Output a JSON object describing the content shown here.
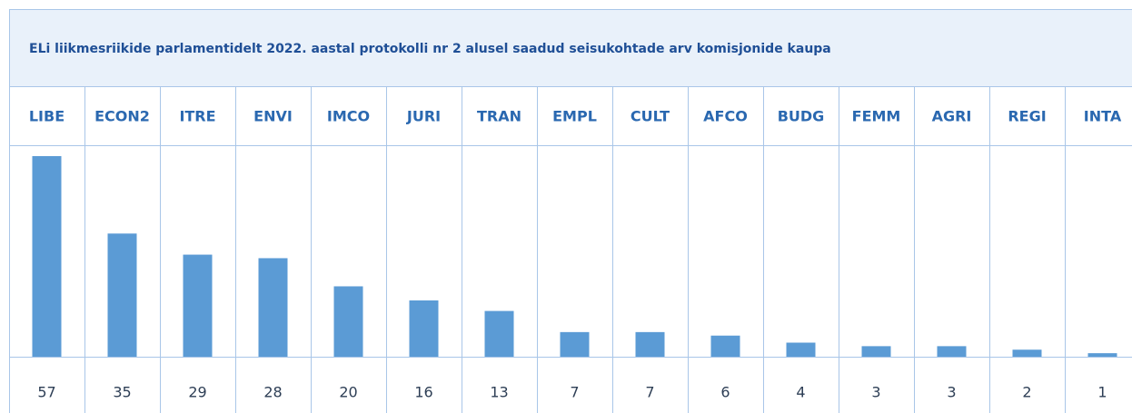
{
  "chart_data": {
    "type": "bar",
    "title": "ELi liikmesriikide parlamentidelt 2022. aastal protokolli nr 2 alusel saadud seisukohtade arv komisjonide kaupa",
    "categories": [
      "LIBE",
      "ECON2",
      "ITRE",
      "ENVI",
      "IMCO",
      "JURI",
      "TRAN",
      "EMPL",
      "CULT",
      "AFCO",
      "BUDG",
      "FEMM",
      "AGRI",
      "REGI",
      "INTA"
    ],
    "values": [
      57,
      35,
      29,
      28,
      20,
      16,
      13,
      7,
      7,
      6,
      4,
      3,
      3,
      2,
      1
    ],
    "color": "#5b9bd5"
  }
}
